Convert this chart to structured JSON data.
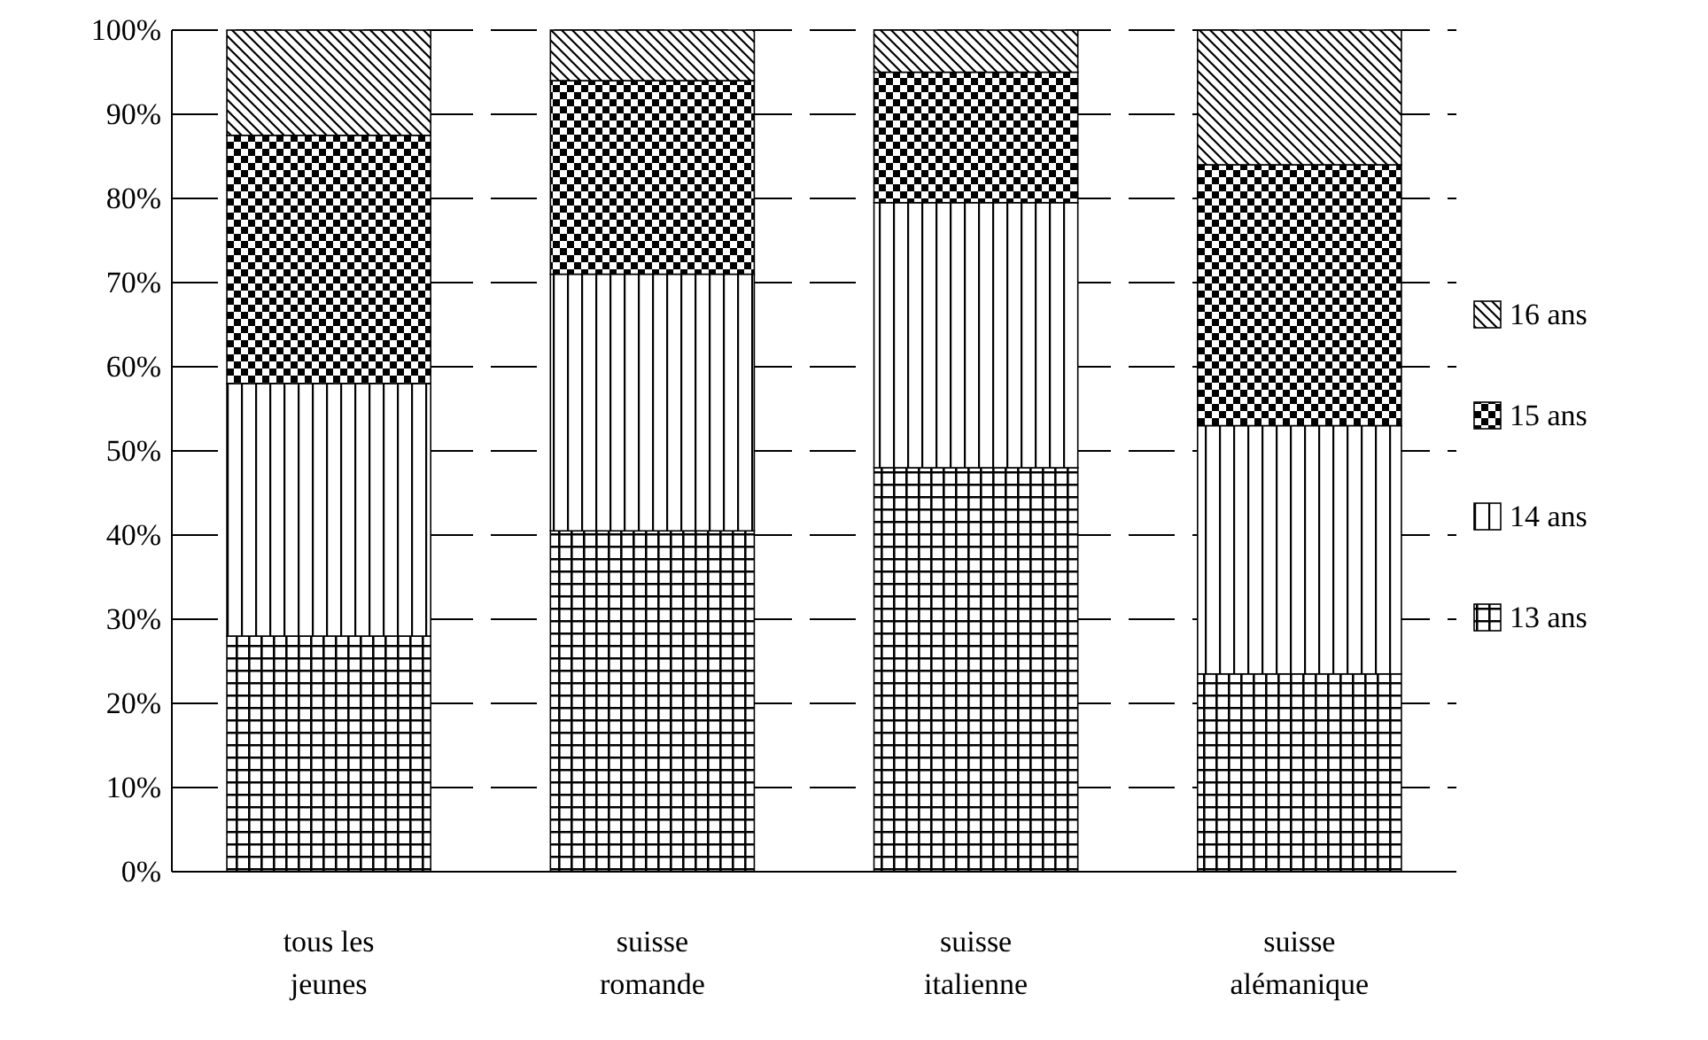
{
  "chart_data": {
    "type": "bar",
    "stacked": true,
    "categories": [
      "tous les jeunes",
      "suisse romande",
      "suisse italienne",
      "suisse alémanique"
    ],
    "series": [
      {
        "name": "13 ans",
        "color": "#000000",
        "values": [
          28,
          40.5,
          48,
          23.5
        ]
      },
      {
        "name": "14 ans",
        "color": "#000000",
        "values": [
          30,
          30.5,
          31.5,
          29.5
        ]
      },
      {
        "name": "15 ans",
        "color": "#000000",
        "values": [
          29.5,
          23,
          15.5,
          31
        ]
      },
      {
        "name": "16 ans",
        "color": "#000000",
        "values": [
          12.5,
          6,
          5,
          16
        ]
      }
    ],
    "ylim": [
      0,
      100
    ],
    "yticks": [
      {
        "value": 0,
        "label": "0%"
      },
      {
        "value": 10,
        "label": "10%"
      },
      {
        "value": 20,
        "label": "20%"
      },
      {
        "value": 30,
        "label": "30%"
      },
      {
        "value": 40,
        "label": "40%"
      },
      {
        "value": 50,
        "label": "50%"
      },
      {
        "value": 60,
        "label": "60%"
      },
      {
        "value": 70,
        "label": "70%"
      },
      {
        "value": 80,
        "label": "80%"
      },
      {
        "value": 90,
        "label": "90%"
      },
      {
        "value": 100,
        "label": "100%"
      }
    ],
    "grid": "y",
    "legend": "right"
  }
}
